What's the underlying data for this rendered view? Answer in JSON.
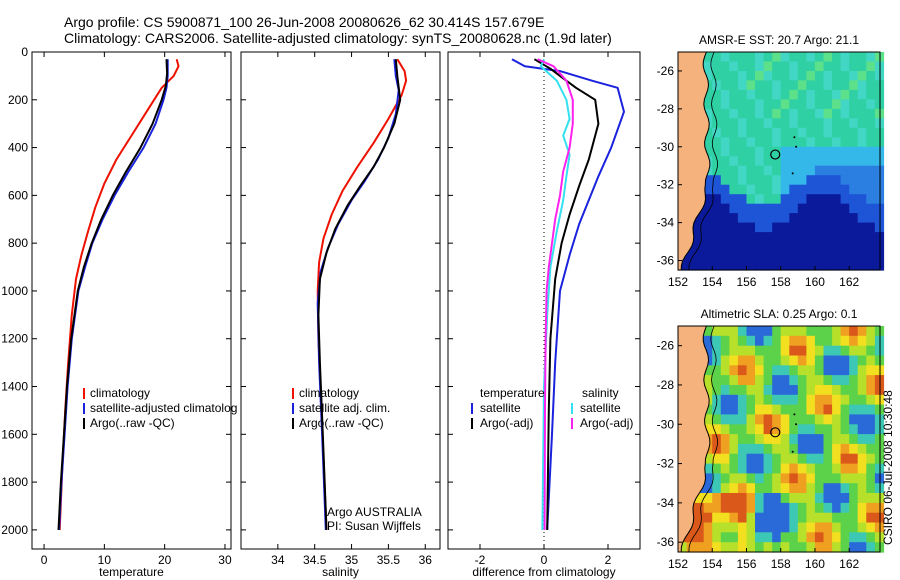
{
  "header": {
    "line1": "Argo profile: CS 5900871_100 26-Jun-2008 20080626_62 30.414S 157.679E",
    "line2": "Climatology: CARS2006. Satellite-adjusted climatology: synTS_20080628.nc (1.9d later)"
  },
  "credit": "CSIRO 06-Jul-2008 10:30:48",
  "colors": {
    "climatology": "#ee1100",
    "satellite": "#1a22dd",
    "argo": "#000000",
    "argo_adj": "#ff22ee",
    "sal_satellite": "#33e0f0",
    "land": "#f5b27c"
  },
  "chart_data": [
    {
      "id": "temperature",
      "type": "line",
      "title": "",
      "xlabel": "temperature",
      "ylabel": "",
      "xlim": [
        -2,
        31
      ],
      "ylim": [
        2080,
        0
      ],
      "y_reversed": true,
      "xticks": [
        0,
        10,
        20,
        30
      ],
      "yticks": [
        0,
        200,
        400,
        600,
        800,
        1000,
        1200,
        1400,
        1600,
        1800,
        2000
      ],
      "legend": [
        "climatology",
        "satellite-adjusted climatolog",
        "Argo(..raw -QC)"
      ],
      "series": [
        {
          "name": "climatology",
          "color": "#ee1100",
          "points": [
            [
              22.0,
              30
            ],
            [
              22.3,
              60
            ],
            [
              21.5,
              100
            ],
            [
              19.5,
              150
            ],
            [
              17.0,
              250
            ],
            [
              14.5,
              350
            ],
            [
              12.0,
              450
            ],
            [
              10.0,
              550
            ],
            [
              8.5,
              650
            ],
            [
              7.3,
              750
            ],
            [
              6.2,
              850
            ],
            [
              5.3,
              950
            ],
            [
              4.6,
              1100
            ],
            [
              4.0,
              1300
            ],
            [
              3.5,
              1500
            ],
            [
              3.0,
              1750
            ],
            [
              2.6,
              2000
            ]
          ]
        },
        {
          "name": "satellite-adjusted climatolog",
          "color": "#1a22dd",
          "points": [
            [
              20.5,
              30
            ],
            [
              20.5,
              100
            ],
            [
              20.3,
              150
            ],
            [
              19.8,
              200
            ],
            [
              18.5,
              300
            ],
            [
              16.5,
              400
            ],
            [
              14.0,
              500
            ],
            [
              11.7,
              600
            ],
            [
              9.7,
              700
            ],
            [
              8.0,
              800
            ],
            [
              6.8,
              900
            ],
            [
              5.7,
              1000
            ],
            [
              4.6,
              1200
            ],
            [
              3.9,
              1400
            ],
            [
              3.4,
              1600
            ],
            [
              2.9,
              1800
            ],
            [
              2.5,
              2000
            ]
          ]
        },
        {
          "name": "Argo(..raw -QC)",
          "color": "#000000",
          "points": [
            [
              20.3,
              30
            ],
            [
              20.4,
              90
            ],
            [
              20.2,
              140
            ],
            [
              19.5,
              200
            ],
            [
              18.0,
              300
            ],
            [
              16.0,
              400
            ],
            [
              13.6,
              500
            ],
            [
              11.4,
              600
            ],
            [
              9.5,
              700
            ],
            [
              7.9,
              800
            ],
            [
              6.6,
              900
            ],
            [
              5.6,
              1000
            ],
            [
              4.5,
              1200
            ],
            [
              3.8,
              1400
            ],
            [
              3.3,
              1600
            ],
            [
              2.8,
              1800
            ],
            [
              2.4,
              2000
            ]
          ]
        }
      ]
    },
    {
      "id": "salinity",
      "type": "line",
      "title": "",
      "xlabel": "salinity",
      "ylabel": "",
      "xlim": [
        33.5,
        36.2
      ],
      "ylim": [
        2080,
        0
      ],
      "y_reversed": true,
      "xticks": [
        34,
        34.5,
        35,
        35.5,
        36
      ],
      "legend": [
        "climatology",
        "satellite adj. clim.",
        "Argo(..raw -QC)"
      ],
      "annotation": [
        "Argo AUSTRALIA",
        "PI: Susan Wijffels"
      ],
      "series": [
        {
          "name": "climatology",
          "color": "#ee1100",
          "points": [
            [
              35.62,
              30
            ],
            [
              35.72,
              80
            ],
            [
              35.74,
              120
            ],
            [
              35.68,
              180
            ],
            [
              35.5,
              280
            ],
            [
              35.3,
              380
            ],
            [
              35.08,
              480
            ],
            [
              34.88,
              580
            ],
            [
              34.73,
              680
            ],
            [
              34.62,
              780
            ],
            [
              34.56,
              880
            ],
            [
              34.54,
              1000
            ],
            [
              34.55,
              1200
            ],
            [
              34.58,
              1400
            ],
            [
              34.62,
              1700
            ],
            [
              34.66,
              2000
            ]
          ]
        },
        {
          "name": "satellite adj. clim.",
          "color": "#1a22dd",
          "points": [
            [
              35.58,
              30
            ],
            [
              35.6,
              100
            ],
            [
              35.64,
              160
            ],
            [
              35.6,
              260
            ],
            [
              35.5,
              360
            ],
            [
              35.36,
              450
            ],
            [
              35.18,
              540
            ],
            [
              35.0,
              620
            ],
            [
              34.82,
              720
            ],
            [
              34.68,
              820
            ],
            [
              34.58,
              920
            ],
            [
              34.54,
              1050
            ],
            [
              34.56,
              1300
            ],
            [
              34.6,
              1600
            ],
            [
              34.65,
              2000
            ]
          ]
        },
        {
          "name": "Argo(..raw -QC)",
          "color": "#000000",
          "points": [
            [
              35.6,
              30
            ],
            [
              35.62,
              100
            ],
            [
              35.66,
              200
            ],
            [
              35.58,
              300
            ],
            [
              35.44,
              400
            ],
            [
              35.3,
              480
            ],
            [
              35.12,
              560
            ],
            [
              34.95,
              640
            ],
            [
              34.78,
              740
            ],
            [
              34.66,
              840
            ],
            [
              34.57,
              950
            ],
            [
              34.55,
              1100
            ],
            [
              34.57,
              1300
            ],
            [
              34.61,
              1600
            ],
            [
              34.66,
              2000
            ]
          ]
        }
      ]
    },
    {
      "id": "difference",
      "type": "line",
      "title": "",
      "xlabel": "difference from climatology",
      "ylabel": "",
      "xlim": [
        -3,
        3
      ],
      "ylim": [
        2080,
        0
      ],
      "y_reversed": true,
      "xticks": [
        -2,
        0,
        2
      ],
      "legend_left_header": "temperature",
      "legend_right_header": "salinity",
      "legend_left": [
        "satellite",
        "Argo(-adj)"
      ],
      "legend_right": [
        "satellite",
        "Argo(-adj)"
      ],
      "series": [
        {
          "name": "temperature satellite",
          "color": "#1a22dd",
          "points": [
            [
              -1.0,
              30
            ],
            [
              -0.6,
              60
            ],
            [
              0.5,
              80
            ],
            [
              1.5,
              120
            ],
            [
              2.3,
              150
            ],
            [
              2.5,
              250
            ],
            [
              2.1,
              400
            ],
            [
              1.7,
              520
            ],
            [
              1.4,
              620
            ],
            [
              1.1,
              720
            ],
            [
              0.8,
              850
            ],
            [
              0.5,
              1000
            ],
            [
              0.35,
              1300
            ],
            [
              0.25,
              1600
            ],
            [
              0.1,
              2000
            ]
          ]
        },
        {
          "name": "temperature Argo(-adj)",
          "color": "#000000",
          "points": [
            [
              -0.3,
              30
            ],
            [
              0.2,
              70
            ],
            [
              0.5,
              100
            ],
            [
              1.0,
              150
            ],
            [
              1.6,
              200
            ],
            [
              1.7,
              300
            ],
            [
              1.4,
              450
            ],
            [
              1.1,
              560
            ],
            [
              0.8,
              680
            ],
            [
              0.55,
              800
            ],
            [
              0.35,
              950
            ],
            [
              0.2,
              1200
            ],
            [
              0.15,
              1500
            ],
            [
              0.1,
              2000
            ]
          ]
        },
        {
          "name": "salinity satellite",
          "color": "#33e0f0",
          "points": [
            [
              0.0,
              30
            ],
            [
              -0.1,
              60
            ],
            [
              0.4,
              120
            ],
            [
              0.7,
              200
            ],
            [
              0.8,
              280
            ],
            [
              0.6,
              350
            ],
            [
              0.8,
              430
            ],
            [
              0.7,
              520
            ],
            [
              0.6,
              620
            ],
            [
              0.4,
              750
            ],
            [
              0.2,
              900
            ],
            [
              0.1,
              1100
            ],
            [
              0.0,
              1400
            ],
            [
              -0.05,
              2000
            ]
          ]
        },
        {
          "name": "salinity Argo(-adj)",
          "color": "#ff22ee",
          "points": [
            [
              -0.2,
              30
            ],
            [
              0.3,
              60
            ],
            [
              0.7,
              120
            ],
            [
              0.9,
              200
            ],
            [
              0.9,
              300
            ],
            [
              0.8,
              400
            ],
            [
              0.6,
              500
            ],
            [
              0.5,
              600
            ],
            [
              0.35,
              700
            ],
            [
              0.25,
              800
            ],
            [
              0.15,
              900
            ],
            [
              0.08,
              1000
            ],
            [
              0.05,
              1200
            ],
            [
              0.03,
              1500
            ],
            [
              0.02,
              2000
            ]
          ]
        }
      ]
    }
  ],
  "maps": [
    {
      "id": "sst",
      "title": "AMSR-E SST: 20.7 Argo: 21.1",
      "xlim": [
        152,
        163.8
      ],
      "ylim": [
        -36.5,
        -25.0
      ],
      "xticks": [
        152,
        154,
        156,
        158,
        160,
        162
      ],
      "yticks": [
        -26,
        -28,
        -30,
        -32,
        -34,
        -36
      ],
      "float_lon": 157.68,
      "float_lat": -30.41
    },
    {
      "id": "sla",
      "title": "Altimetric SLA: 0.25 Argo: 0.1",
      "xlim": [
        152,
        163.8
      ],
      "ylim": [
        -36.5,
        -25.0
      ],
      "xticks": [
        152,
        154,
        156,
        158,
        160,
        162
      ],
      "yticks": [
        -26,
        -28,
        -30,
        -32,
        -34,
        -36
      ],
      "float_lon": 157.68,
      "float_lat": -30.41
    }
  ]
}
